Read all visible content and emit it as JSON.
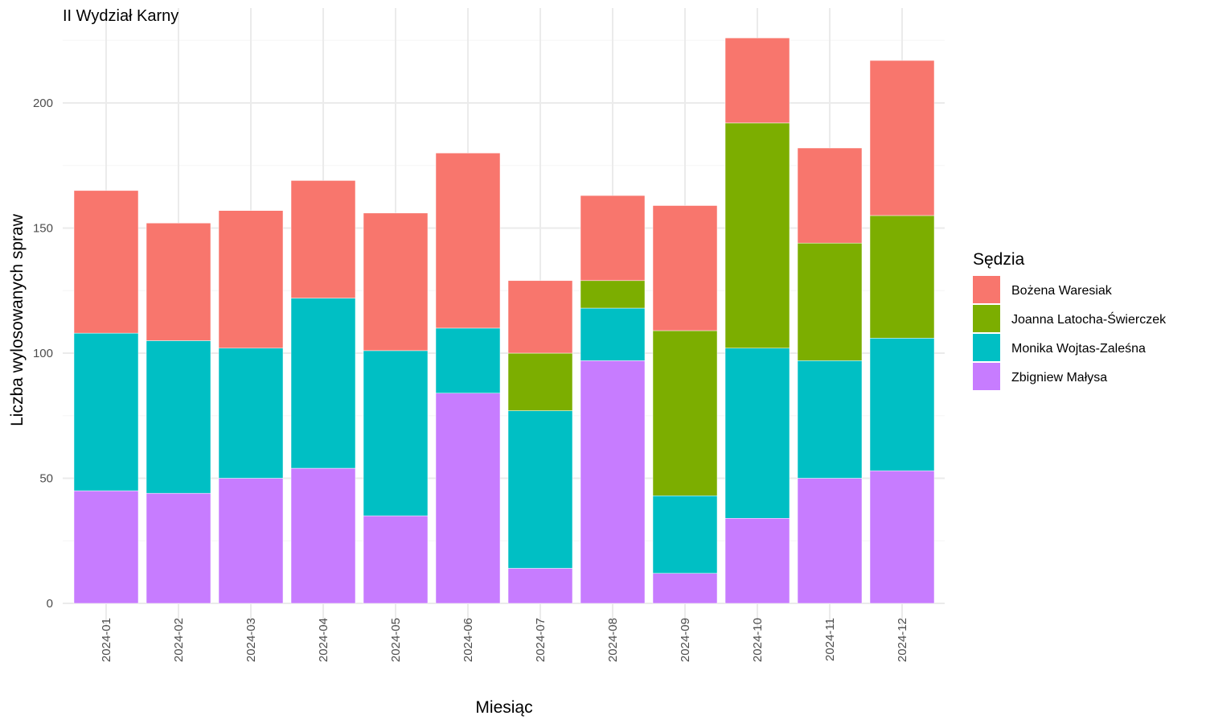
{
  "chart_data": {
    "type": "bar",
    "stacked": true,
    "title": "II Wydział Karny",
    "xlabel": "Miesiąc",
    "ylabel": "Liczba wylosowanych spraw",
    "ylim": [
      0,
      230
    ],
    "yticks": [
      0,
      50,
      100,
      150,
      200
    ],
    "grid": true,
    "legend_title": "Sędzia",
    "legend_position": "right",
    "categories": [
      "2024-01",
      "2024-02",
      "2024-03",
      "2024-04",
      "2024-05",
      "2024-06",
      "2024-07",
      "2024-08",
      "2024-09",
      "2024-10",
      "2024-11",
      "2024-12"
    ],
    "series": [
      {
        "name": "Zbigniew Małysa",
        "color": "#C77CFF",
        "values": [
          45,
          44,
          50,
          54,
          35,
          84,
          14,
          97,
          12,
          34,
          50,
          53
        ]
      },
      {
        "name": "Monika Wojtas-Zaleśna",
        "color": "#00BFC4",
        "values": [
          63,
          61,
          52,
          68,
          66,
          26,
          63,
          21,
          31,
          68,
          47,
          53
        ]
      },
      {
        "name": "Joanna Latocha-Świerczek",
        "color": "#7CAE00",
        "values": [
          0,
          0,
          0,
          0,
          0,
          0,
          23,
          11,
          66,
          90,
          47,
          49
        ]
      },
      {
        "name": "Bożena Waresiak",
        "color": "#F8766D",
        "values": [
          57,
          47,
          55,
          47,
          55,
          70,
          29,
          34,
          50,
          34,
          38,
          62
        ]
      }
    ],
    "legend_order": [
      "Bożena Waresiak",
      "Joanna Latocha-Świerczek",
      "Monika Wojtas-Zaleśna",
      "Zbigniew Małysa"
    ]
  }
}
